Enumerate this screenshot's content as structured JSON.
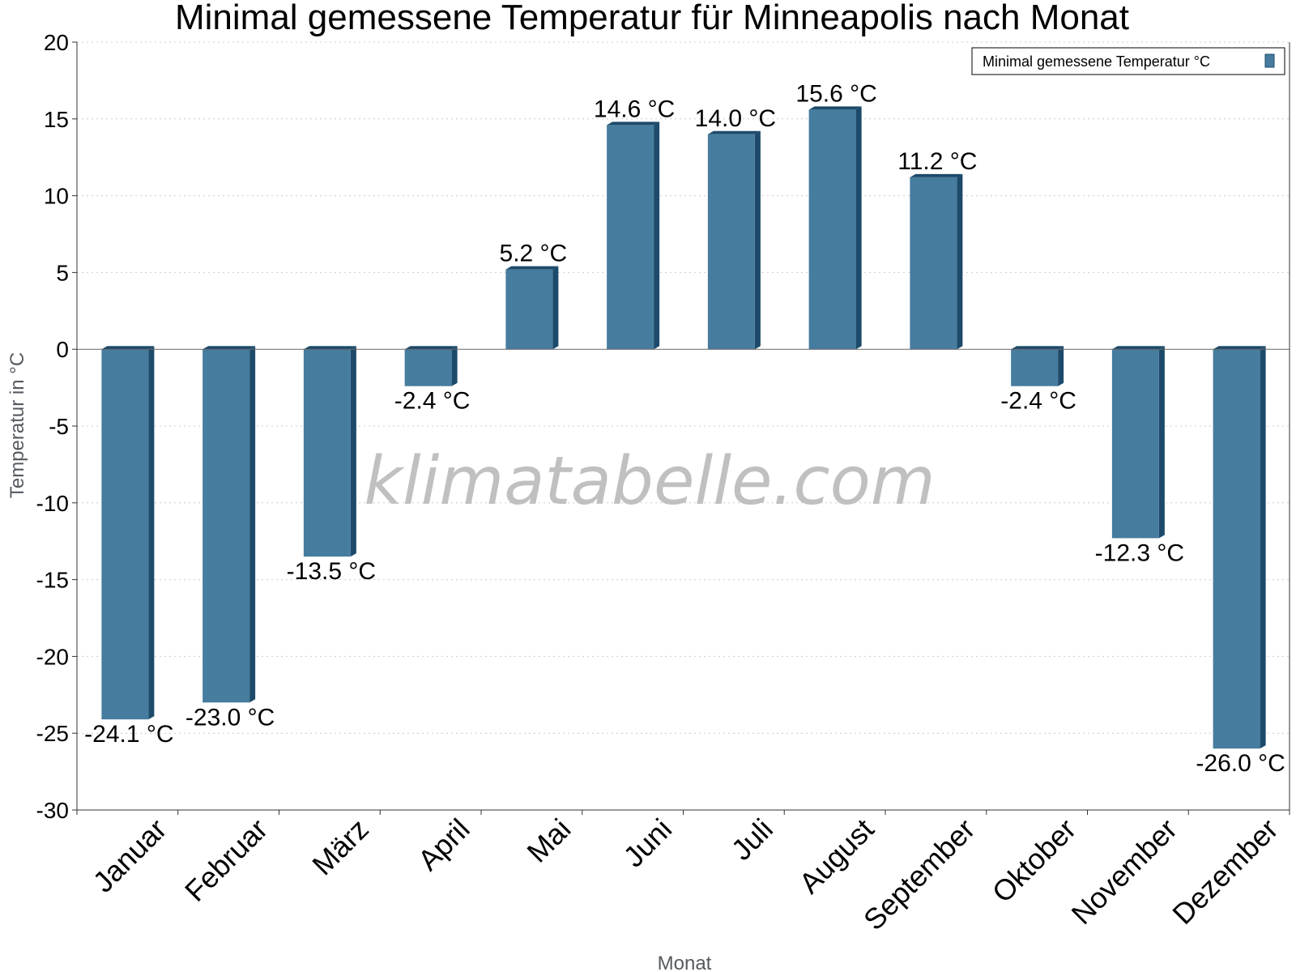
{
  "chart_data": {
    "type": "bar",
    "title": "Minimal gemessene Temperatur für Minneapolis nach Monat",
    "xlabel": "Monat",
    "ylabel": "Temperatur in °C",
    "categories": [
      "Januar",
      "Februar",
      "März",
      "April",
      "Mai",
      "Juni",
      "Juli",
      "August",
      "September",
      "Oktober",
      "November",
      "Dezember"
    ],
    "series": [
      {
        "name": "Minimal gemessene Temperatur °C",
        "values": [
          -24.1,
          -23.0,
          -13.5,
          -2.4,
          5.2,
          14.6,
          14.0,
          15.6,
          11.2,
          -2.4,
          -12.3,
          -26.0
        ],
        "labels": [
          "-24.1 °C",
          "-23.0 °C",
          "-13.5 °C",
          "-2.4 °C",
          "5.2 °C",
          "14.6 °C",
          "14.0 °C",
          "15.6 °C",
          "11.2 °C",
          "-2.4 °C",
          "-12.3 °C",
          "-26.0 °C"
        ]
      }
    ],
    "yticks": [
      "20",
      "15",
      "10",
      "5",
      "0",
      "-5",
      "-10",
      "-15",
      "-20",
      "-25",
      "-30"
    ],
    "ylim": [
      -30,
      20
    ],
    "grid": true,
    "legend_position": "top-right",
    "colors": {
      "bar": "#467c9e",
      "bar_side": "#1d4a6a",
      "grid": "#cccccc"
    }
  },
  "watermark": "klimatabelle.com"
}
